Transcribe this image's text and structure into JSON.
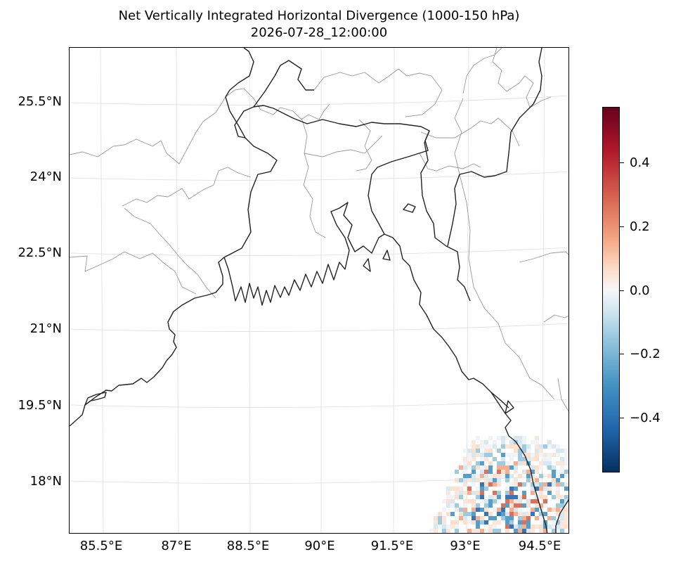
{
  "figure": {
    "title_line1": "Net Vertically Integrated Horizontal Divergence (1000-150 hPa)",
    "title_line2": "2026-07-28_12:00:00"
  },
  "map": {
    "lon_ticks": [
      "85.5°E",
      "87°E",
      "88.5°E",
      "90°E",
      "91.5°E",
      "93°E",
      "94.5°E"
    ],
    "lat_ticks": [
      "25.5°N",
      "24°N",
      "22.5°N",
      "21°N",
      "19.5°N",
      "18°N"
    ],
    "extent": {
      "lon_min": 84.9,
      "lon_max": 94.9,
      "lat_min": 16.9,
      "lat_max": 26.6
    },
    "colors": {
      "coastline": "#222222",
      "borders": "#999999",
      "gridlines": "#dddddd"
    }
  },
  "colorbar": {
    "colormap": "RdBu_r",
    "range": [
      -0.57,
      0.57
    ],
    "ticks": [
      "0.4",
      "0.2",
      "0.0",
      "−0.2",
      "−0.4"
    ]
  }
}
